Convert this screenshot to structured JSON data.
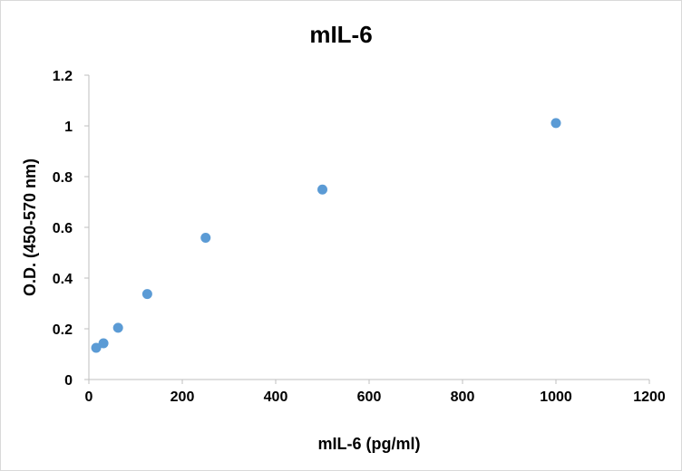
{
  "chart_data": {
    "type": "scatter",
    "title": "mIL-6",
    "xlabel": "mIL-6 (pg/ml)",
    "ylabel": "O.D. (450-570 nm)",
    "xlim": [
      0,
      1200
    ],
    "ylim": [
      0,
      1.2
    ],
    "xticks": [
      0,
      200,
      400,
      600,
      800,
      1000,
      1200
    ],
    "yticks": [
      0,
      0.2,
      0.4,
      0.6,
      0.8,
      1,
      1.2
    ],
    "xtick_labels": [
      "0",
      "200",
      "400",
      "600",
      "800",
      "1000",
      "1200"
    ],
    "ytick_labels": [
      "0",
      "0.2",
      "0.4",
      "0.6",
      "0.8",
      "1",
      "1.2"
    ],
    "grid": false,
    "legend": "none",
    "marker_color": "#5b9bd5",
    "points": [
      {
        "x": 15.6,
        "y": 0.125
      },
      {
        "x": 31.25,
        "y": 0.143
      },
      {
        "x": 62.5,
        "y": 0.204
      },
      {
        "x": 125,
        "y": 0.337
      },
      {
        "x": 250,
        "y": 0.559
      },
      {
        "x": 500,
        "y": 0.749
      },
      {
        "x": 1000,
        "y": 1.011
      }
    ]
  }
}
